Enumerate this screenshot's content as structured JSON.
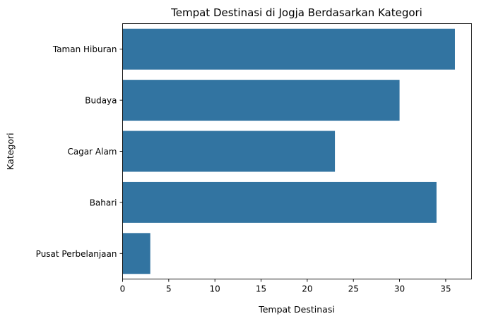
{
  "chart_data": {
    "type": "bar",
    "orientation": "horizontal",
    "title": "Tempat Destinasi di Jogja Berdasarkan Kategori",
    "xlabel": "Tempat Destinasi",
    "ylabel": "Kategori",
    "categories": [
      "Taman Hiburan",
      "Budaya",
      "Cagar Alam",
      "Bahari",
      "Pusat Perbelanjaan"
    ],
    "values": [
      36,
      30,
      23,
      34,
      3
    ],
    "xlim": [
      0,
      37.8
    ],
    "xticks": [
      0,
      5,
      10,
      15,
      20,
      25,
      30,
      35
    ],
    "grid": false,
    "legend": "none",
    "bar_color": "#3274a1"
  }
}
